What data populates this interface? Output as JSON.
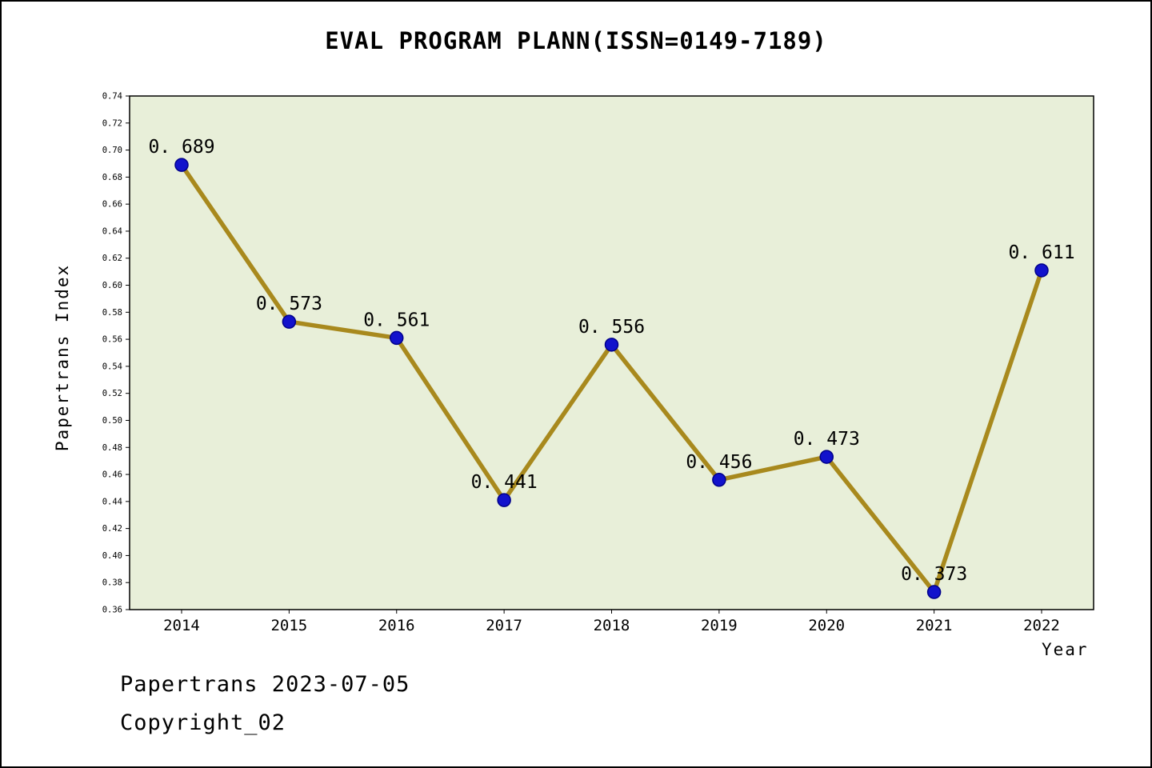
{
  "chart_data": {
    "type": "line",
    "title": "EVAL PROGRAM PLANN(ISSN=0149-7189)",
    "xlabel": "Year",
    "ylabel": "Papertrans Index",
    "categories": [
      "2014",
      "2015",
      "2016",
      "2017",
      "2018",
      "2019",
      "2020",
      "2021",
      "2022"
    ],
    "values": [
      0.689,
      0.573,
      0.561,
      0.441,
      0.556,
      0.456,
      0.473,
      0.373,
      0.611
    ],
    "point_labels": [
      "0. 689",
      "0. 573",
      "0. 561",
      "0. 441",
      "0. 556",
      "0. 456",
      "0. 473",
      "0. 373",
      "0. 611"
    ],
    "ylim": [
      0.36,
      0.74
    ],
    "ytick_step": 0.02,
    "grid": false,
    "legend_position": "none",
    "styles": {
      "plot_background": "#e8efd9",
      "line_color": "#a8891d",
      "marker_fill": "#1212cc",
      "marker_edge": "#00008b",
      "axis_color": "#000000"
    }
  },
  "footer": {
    "line1": "Papertrans 2023-07-05",
    "line2": "Copyright_02"
  }
}
